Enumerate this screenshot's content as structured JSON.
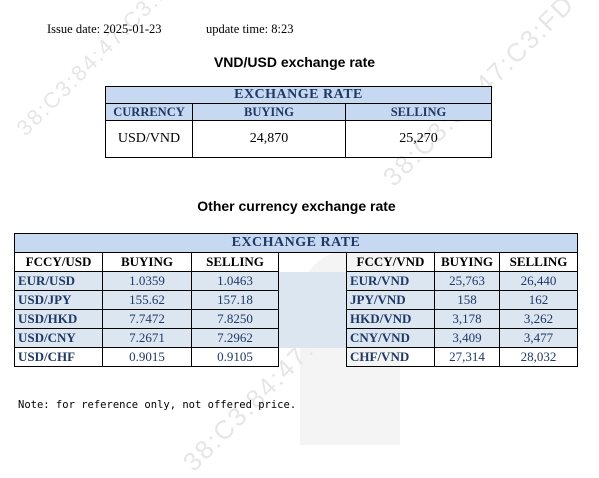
{
  "header": {
    "issue_label": "Issue date:",
    "issue_date": "2025-01-23",
    "update_label": "update time:",
    "update_time": "8:23"
  },
  "watermark": {
    "text": "38:C3:84:47:C3:FD"
  },
  "main_table": {
    "title": "VND/USD exchange rate",
    "caption": "EXCHANGE RATE",
    "headers": [
      "CURRENCY",
      "BUYING",
      "SELLING"
    ],
    "row": [
      "USD/VND",
      "24,870",
      "25,270"
    ]
  },
  "other_table": {
    "title": "Other currency exchange rate",
    "caption": "EXCHANGE  RATE",
    "left_headers": [
      "FCCY/USD",
      "BUYING",
      "SELLING"
    ],
    "right_headers": [
      "FCCY/VND",
      "BUYING",
      "SELLING"
    ],
    "rows": [
      {
        "pair": "EUR/USD",
        "buy": "1.0359",
        "sell": "1.0463",
        "vpair": "EUR/VND",
        "vbuy": "25,763",
        "vsell": "26,440"
      },
      {
        "pair": "USD/JPY",
        "buy": "155.62",
        "sell": "157.18",
        "vpair": "JPY/VND",
        "vbuy": "158",
        "vsell": "162"
      },
      {
        "pair": "USD/HKD",
        "buy": "7.7472",
        "sell": "7.8250",
        "vpair": "HKD/VND",
        "vbuy": "3,178",
        "vsell": "3,262"
      },
      {
        "pair": "USD/CNY",
        "buy": "7.2671",
        "sell": "7.2962",
        "vpair": "CNY/VND",
        "vbuy": "3,409",
        "vsell": "3,477"
      },
      {
        "pair": "USD/CHF",
        "buy": "0.9015",
        "sell": "0.9105",
        "vpair": "CHF/VND",
        "vbuy": "27,314",
        "vsell": "28,032"
      }
    ]
  },
  "footer": {
    "note": "Note: for reference only, not offered price."
  },
  "colors": {
    "header_bg": "#c6d9f0",
    "band_bg": "#dce6f1",
    "header_text": "#1f3864"
  }
}
